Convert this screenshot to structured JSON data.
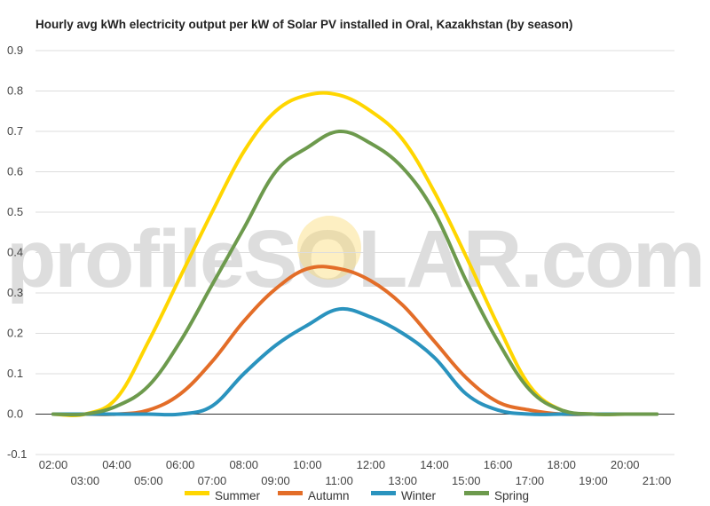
{
  "title": "Hourly avg kWh electricity output per kW of Solar PV installed in Oral, Kazakhstan (by season)",
  "watermark": "profileSOLAR.com",
  "chart_data": {
    "type": "line",
    "title": "Hourly avg kWh electricity output per kW of Solar PV installed in Oral, Kazakhstan (by season)",
    "xlabel": "",
    "ylabel": "",
    "ylim": [
      -0.1,
      0.9
    ],
    "yticks": [
      -0.1,
      0.0,
      0.1,
      0.2,
      0.3,
      0.4,
      0.5,
      0.6,
      0.7,
      0.8,
      0.9
    ],
    "ytick_labels": [
      "-0.1",
      "0.0",
      "0.1",
      "0.2",
      "0.3",
      "0.4",
      "0.5",
      "0.6",
      "0.7",
      "0.8",
      "0.9"
    ],
    "x": [
      "02:00",
      "03:00",
      "04:00",
      "05:00",
      "06:00",
      "07:00",
      "08:00",
      "09:00",
      "10:00",
      "11:00",
      "12:00",
      "13:00",
      "14:00",
      "15:00",
      "16:00",
      "17:00",
      "18:00",
      "19:00",
      "20:00",
      "21:00"
    ],
    "grid": true,
    "legend_position": "bottom",
    "series": [
      {
        "name": "Summer",
        "color": "#ffd600",
        "values": [
          0.0,
          0.0,
          0.04,
          0.18,
          0.34,
          0.5,
          0.65,
          0.75,
          0.79,
          0.79,
          0.75,
          0.68,
          0.55,
          0.39,
          0.22,
          0.07,
          0.01,
          0.0,
          0.0,
          0.0
        ]
      },
      {
        "name": "Autumn",
        "color": "#e36d28",
        "values": [
          0.0,
          0.0,
          0.0,
          0.01,
          0.05,
          0.13,
          0.23,
          0.31,
          0.36,
          0.36,
          0.33,
          0.27,
          0.18,
          0.09,
          0.03,
          0.01,
          0.0,
          0.0,
          0.0,
          0.0
        ]
      },
      {
        "name": "Winter",
        "color": "#2a93be",
        "values": [
          0.0,
          0.0,
          0.0,
          0.0,
          0.0,
          0.02,
          0.1,
          0.17,
          0.22,
          0.26,
          0.24,
          0.2,
          0.14,
          0.05,
          0.01,
          0.0,
          0.0,
          0.0,
          0.0,
          0.0
        ]
      },
      {
        "name": "Spring",
        "color": "#6d9a4d",
        "values": [
          0.0,
          0.0,
          0.02,
          0.07,
          0.18,
          0.32,
          0.46,
          0.6,
          0.66,
          0.7,
          0.67,
          0.61,
          0.5,
          0.33,
          0.18,
          0.06,
          0.01,
          0.0,
          0.0,
          0.0
        ]
      }
    ]
  }
}
